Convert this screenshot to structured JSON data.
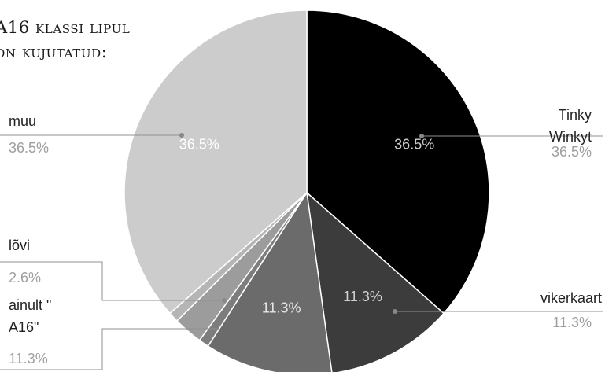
{
  "title_lines": [
    "A16 klassi lipul",
    "on kujutatud:"
  ],
  "chart_data": {
    "type": "pie",
    "slices": [
      {
        "label": "Tinky Winkyt",
        "value": 36.5,
        "percent_label": "36.5%",
        "color": "#000000",
        "inside_label_color": "#cccccc"
      },
      {
        "label": "vikerkaart",
        "value": 11.3,
        "percent_label": "11.3%",
        "color": "#3c3c3c",
        "inside_label_color": "#d0d0d0"
      },
      {
        "label": "ainult \" A16\"",
        "value": 11.3,
        "percent_label": "11.3%",
        "color": "#6b6b6b",
        "inside_label_color": "#e6e6e6"
      },
      {
        "label": "",
        "value": 0.9,
        "percent_label": "",
        "color": "#7d7d7d",
        "inside_label_color": "#ffffff"
      },
      {
        "label": "lõvi",
        "value": 2.6,
        "percent_label": "2.6%",
        "color": "#9c9c9c",
        "inside_label_color": "#ffffff"
      },
      {
        "label": "",
        "value": 0.9,
        "percent_label": "",
        "color": "#b5b5b5",
        "inside_label_color": "#ffffff"
      },
      {
        "label": "muu",
        "value": 36.5,
        "percent_label": "36.5%",
        "color": "#cccccc",
        "inside_label_color": "#ffffff"
      }
    ],
    "legend_position": "labels beside slices"
  }
}
